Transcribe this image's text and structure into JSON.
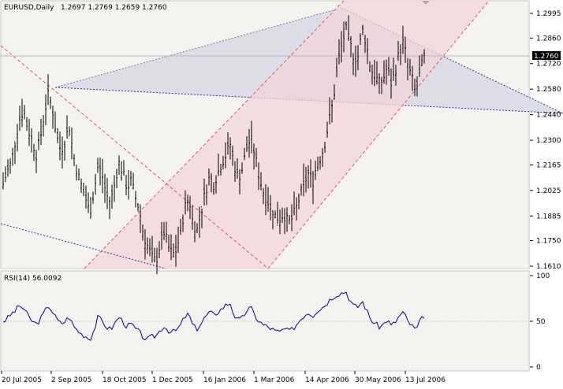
{
  "header": {
    "symbol": "EURUSD,Daily",
    "ohlc": "1.2697 1.2769 1.2659 1.2760"
  },
  "price_axis": {
    "labels": [
      "1.2995",
      "1.2860",
      "1.2720",
      "1.2580",
      "1.2440",
      "1.2300",
      "1.2165",
      "1.2025",
      "1.1885",
      "1.1750",
      "1.1610"
    ],
    "current_price": "1.2760"
  },
  "rsi": {
    "label": "RSI(14) 56.0092",
    "axis_labels": [
      "100",
      "50",
      "0"
    ]
  },
  "time_axis": {
    "labels": [
      "20 Jul 2005",
      "2 Sep 2005",
      "18 Oct 2005",
      "1 Dec 2005",
      "16 Jan 2006",
      "1 Mar 2006",
      "14 Apr 2006",
      "30 May 2006",
      "13 Jul 2006"
    ]
  },
  "colors": {
    "background": "#f5f3ef",
    "bars": "#000000",
    "channel_fill": "#f4dede",
    "channel_line": "#e8506a",
    "triangle_fill": "#dcdde6",
    "triangle_line": "#3030a0",
    "rsi_line": "#0000a0",
    "price_label_bg": "#000000"
  },
  "chart_data": {
    "type": "line",
    "title": "EURUSD,Daily",
    "y_range": [
      1.161,
      1.2995
    ],
    "x_range": [
      "20 Jul 2005",
      "13 Jul 2006"
    ],
    "price_series": [
      1.206,
      1.213,
      1.218,
      1.23,
      1.243,
      1.246,
      1.236,
      1.23,
      1.222,
      1.231,
      1.245,
      1.256,
      1.246,
      1.232,
      1.224,
      1.23,
      1.238,
      1.222,
      1.212,
      1.205,
      1.198,
      1.19,
      1.202,
      1.216,
      1.211,
      1.2,
      1.196,
      1.206,
      1.218,
      1.212,
      1.204,
      1.208,
      1.199,
      1.192,
      1.178,
      1.172,
      1.166,
      1.163,
      1.173,
      1.18,
      1.172,
      1.167,
      1.17,
      1.18,
      1.193,
      1.199,
      1.184,
      1.181,
      1.191,
      1.202,
      1.21,
      1.206,
      1.212,
      1.218,
      1.222,
      1.228,
      1.216,
      1.209,
      1.215,
      1.226,
      1.231,
      1.222,
      1.21,
      1.202,
      1.197,
      1.193,
      1.188,
      1.187,
      1.19,
      1.185,
      1.187,
      1.193,
      1.2,
      1.207,
      1.212,
      1.207,
      1.217,
      1.221,
      1.229,
      1.241,
      1.252,
      1.271,
      1.282,
      1.291,
      1.283,
      1.275,
      1.276,
      1.291,
      1.283,
      1.269,
      1.266,
      1.261,
      1.263,
      1.27,
      1.261,
      1.268,
      1.279,
      1.284,
      1.271,
      1.264,
      1.257,
      1.267,
      1.276
    ],
    "rsi_series": [
      50,
      53,
      58,
      62,
      67,
      64,
      56,
      50,
      47,
      52,
      60,
      68,
      60,
      52,
      47,
      50,
      55,
      45,
      40,
      36,
      34,
      30,
      40,
      55,
      50,
      44,
      41,
      47,
      55,
      50,
      44,
      47,
      42,
      38,
      32,
      30,
      33,
      34,
      40,
      45,
      40,
      38,
      40,
      46,
      55,
      58,
      44,
      42,
      48,
      55,
      60,
      57,
      60,
      64,
      68,
      70,
      56,
      50,
      54,
      62,
      65,
      56,
      50,
      46,
      44,
      42,
      39,
      38,
      42,
      39,
      41,
      46,
      52,
      57,
      60,
      56,
      62,
      64,
      68,
      73,
      77,
      80,
      81,
      83,
      73,
      66,
      66,
      72,
      63,
      52,
      48,
      44,
      46,
      52,
      45,
      49,
      56,
      60,
      50,
      45,
      40,
      50,
      56
    ],
    "rsi_level": 50,
    "rsi_range": [
      0,
      100
    ]
  }
}
